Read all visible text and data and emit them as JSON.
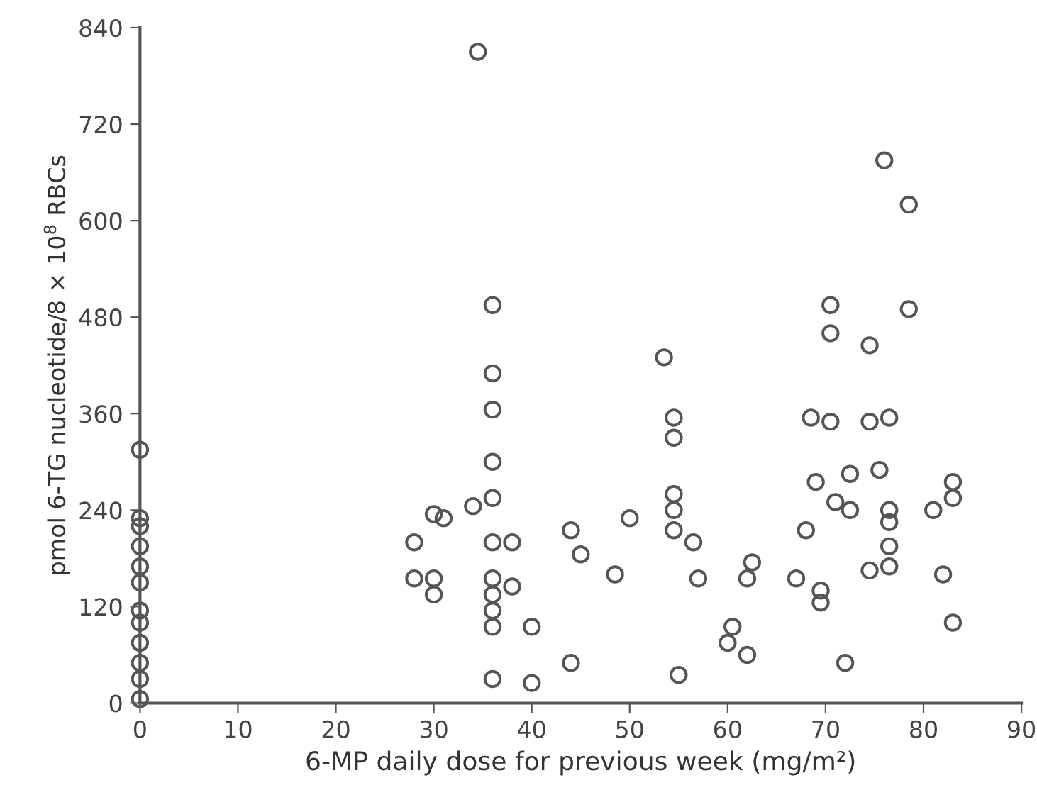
{
  "chart_data": {
    "type": "scatter",
    "xlabel": "6-MP daily dose for previous week (mg/m²)",
    "ylabel": "pmol 6-TG nucleotide/8 × 10$^{8}$ RBCs",
    "xlim": [
      0,
      90
    ],
    "xticks": [
      0,
      10,
      20,
      30,
      40,
      50,
      60,
      70,
      80,
      90
    ],
    "ylim": [
      0,
      840
    ],
    "yticks": [
      0,
      120,
      240,
      360,
      480,
      600,
      720,
      840
    ],
    "grid": false,
    "marker": "circle",
    "series": [
      {
        "color": "#555555",
        "x": [
          0,
          0,
          0,
          0,
          0,
          0,
          0,
          0,
          0,
          0,
          0,
          0,
          34.5,
          36,
          36,
          36,
          36,
          36,
          28,
          30,
          31,
          34,
          36,
          38,
          28,
          30,
          30,
          36,
          36,
          38,
          36,
          36,
          40,
          36,
          40,
          44,
          44,
          76,
          78.5,
          70.5,
          78.5,
          70.5,
          74.5,
          53.5,
          54.5,
          54.5,
          54.5,
          54.5,
          54.5,
          56.5,
          50,
          45,
          48.5,
          57,
          62.5,
          62,
          67,
          68,
          68.5,
          70.5,
          74.5,
          76.5,
          69,
          72.5,
          75.5,
          71,
          72.5,
          76.5,
          76.5,
          76.5,
          74.5,
          76.5,
          69.5,
          69.5,
          83,
          83,
          81,
          82,
          83,
          60.5,
          60,
          62,
          72,
          55
        ],
        "values": [
          315,
          230,
          220,
          195,
          170,
          150,
          115,
          100,
          75,
          50,
          30,
          5,
          810,
          495,
          410,
          365,
          300,
          255,
          200,
          235,
          230,
          245,
          200,
          200,
          155,
          155,
          135,
          155,
          135,
          145,
          115,
          95,
          95,
          30,
          25,
          215,
          50,
          675,
          620,
          495,
          490,
          460,
          445,
          430,
          355,
          330,
          260,
          240,
          215,
          200,
          230,
          185,
          160,
          155,
          175,
          155,
          155,
          215,
          355,
          350,
          350,
          355,
          275,
          285,
          290,
          250,
          240,
          240,
          225,
          195,
          165,
          170,
          140,
          125,
          275,
          255,
          240,
          160,
          100,
          95,
          75,
          60,
          50,
          35
        ]
      }
    ]
  }
}
